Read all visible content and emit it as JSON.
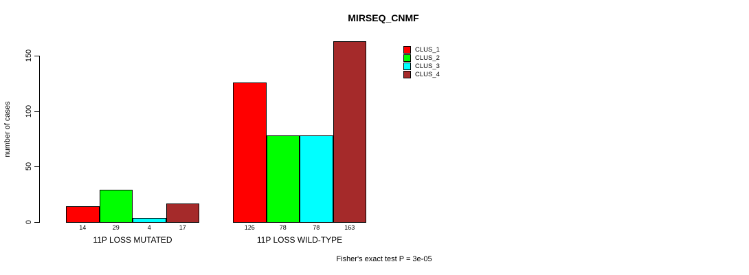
{
  "chart_data": {
    "type": "bar",
    "title": "MIRSEQ_CNMF",
    "ylabel": "number of cases",
    "xlabel": "",
    "categories": [
      "11P LOSS MUTATED",
      "11P LOSS WILD-TYPE"
    ],
    "series": [
      {
        "name": "CLUS_1",
        "color": "#FF0000",
        "values": [
          14,
          126
        ]
      },
      {
        "name": "CLUS_2",
        "color": "#00FF00",
        "values": [
          29,
          78
        ]
      },
      {
        "name": "CLUS_3",
        "color": "#00FFFF",
        "values": [
          4,
          78
        ]
      },
      {
        "name": "CLUS_4",
        "color": "#A52A2A",
        "values": [
          17,
          163
        ]
      }
    ],
    "yticks": [
      0,
      50,
      100,
      150
    ],
    "ylim": [
      0,
      163
    ],
    "bar_value_labels": [
      [
        14,
        29,
        4,
        17
      ],
      [
        126,
        78,
        78,
        163
      ]
    ],
    "legend_entries": [
      "CLUS_1",
      "CLUS_2",
      "CLUS_3",
      "CLUS_4"
    ],
    "legend_position": "top-right-inside",
    "grid": false,
    "annotation": "Fisher's exact test P = 3e-05"
  },
  "colors": {
    "axis": "#000000",
    "background": "#ffffff",
    "clus_1": "#FF0000",
    "clus_2": "#00FF00",
    "clus_3": "#00FFFF",
    "clus_4": "#A52A2A"
  }
}
